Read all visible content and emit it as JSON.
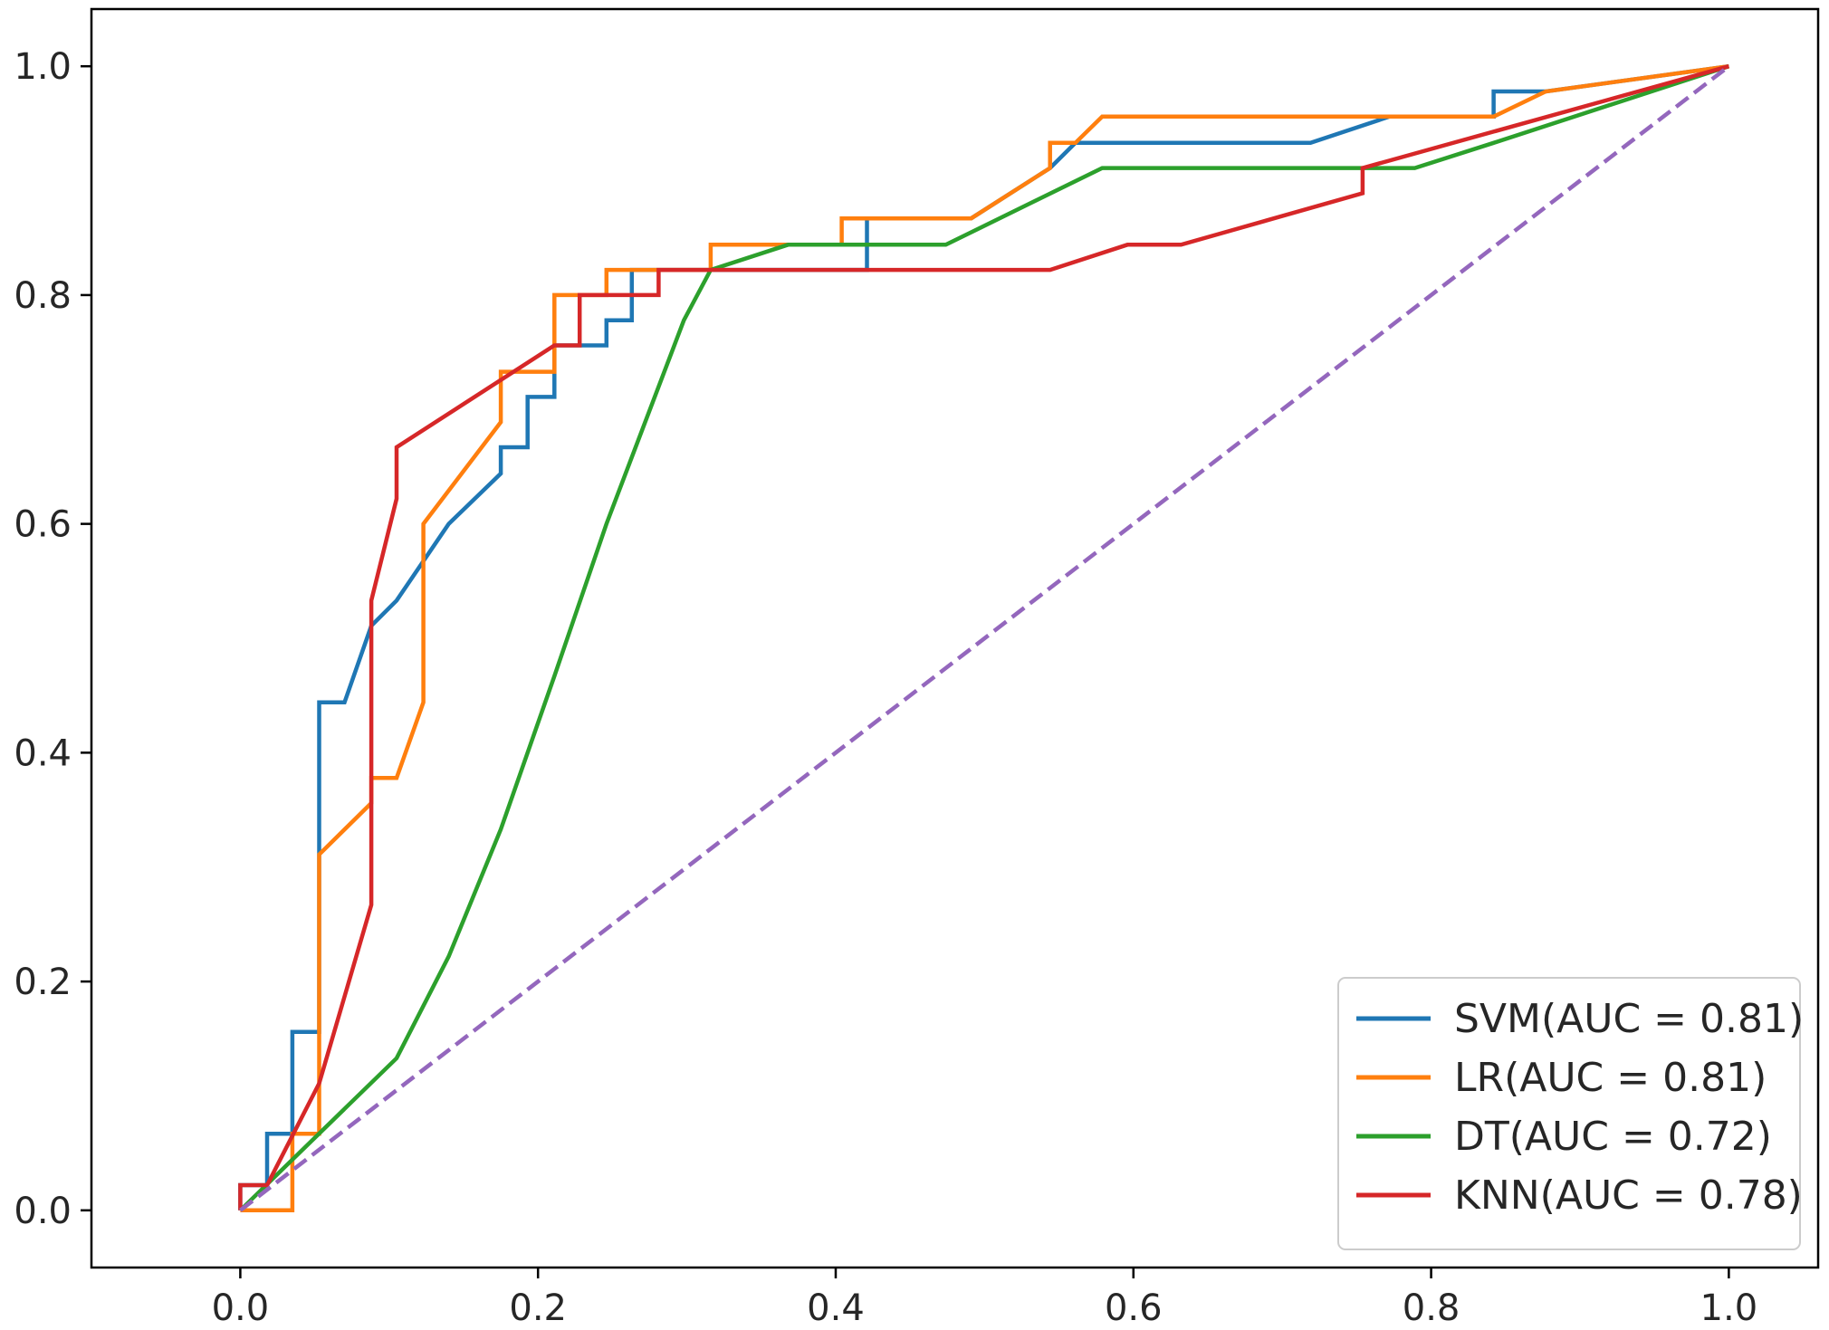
{
  "chart_data": {
    "type": "line",
    "title": "",
    "xlabel": "",
    "ylabel": "",
    "xlim": [
      -0.1,
      1.06
    ],
    "ylim": [
      -0.05,
      1.05
    ],
    "xticks": [
      0.0,
      0.2,
      0.4,
      0.6,
      0.8,
      1.0
    ],
    "yticks": [
      0.0,
      0.2,
      0.4,
      0.6,
      0.8,
      1.0
    ],
    "xtick_labels": [
      "0.0",
      "0.2",
      "0.4",
      "0.6",
      "0.8",
      "1.0"
    ],
    "ytick_labels": [
      "0.0",
      "0.2",
      "0.4",
      "0.6",
      "0.8",
      "1.0"
    ],
    "grid": false,
    "legend_position": "lower-right",
    "series": [
      {
        "name": "SVM(AUC = 0.81)",
        "color": "#1f77b4",
        "points": [
          [
            0,
            0
          ],
          [
            0,
            0.022
          ],
          [
            0.018,
            0.022
          ],
          [
            0.018,
            0.067
          ],
          [
            0.035,
            0.067
          ],
          [
            0.035,
            0.156
          ],
          [
            0.053,
            0.156
          ],
          [
            0.053,
            0.444
          ],
          [
            0.07,
            0.444
          ],
          [
            0.088,
            0.511
          ],
          [
            0.105,
            0.533
          ],
          [
            0.14,
            0.6
          ],
          [
            0.175,
            0.644
          ],
          [
            0.175,
            0.667
          ],
          [
            0.193,
            0.667
          ],
          [
            0.193,
            0.711
          ],
          [
            0.211,
            0.711
          ],
          [
            0.211,
            0.756
          ],
          [
            0.246,
            0.756
          ],
          [
            0.246,
            0.778
          ],
          [
            0.263,
            0.778
          ],
          [
            0.263,
            0.822
          ],
          [
            0.421,
            0.822
          ],
          [
            0.421,
            0.867
          ],
          [
            0.491,
            0.867
          ],
          [
            0.544,
            0.911
          ],
          [
            0.561,
            0.933
          ],
          [
            0.719,
            0.933
          ],
          [
            0.772,
            0.956
          ],
          [
            0.842,
            0.956
          ],
          [
            0.842,
            0.978
          ],
          [
            0.877,
            0.978
          ],
          [
            1.0,
            1.0
          ]
        ]
      },
      {
        "name": "LR(AUC = 0.81)",
        "color": "#ff7f0e",
        "points": [
          [
            0,
            0
          ],
          [
            0.035,
            0
          ],
          [
            0.035,
            0.022
          ],
          [
            0.035,
            0.067
          ],
          [
            0.053,
            0.067
          ],
          [
            0.053,
            0.311
          ],
          [
            0.088,
            0.356
          ],
          [
            0.088,
            0.378
          ],
          [
            0.105,
            0.378
          ],
          [
            0.123,
            0.444
          ],
          [
            0.123,
            0.6
          ],
          [
            0.175,
            0.689
          ],
          [
            0.175,
            0.733
          ],
          [
            0.211,
            0.733
          ],
          [
            0.211,
            0.8
          ],
          [
            0.246,
            0.8
          ],
          [
            0.246,
            0.822
          ],
          [
            0.316,
            0.822
          ],
          [
            0.316,
            0.844
          ],
          [
            0.404,
            0.844
          ],
          [
            0.404,
            0.867
          ],
          [
            0.491,
            0.867
          ],
          [
            0.544,
            0.911
          ],
          [
            0.544,
            0.933
          ],
          [
            0.561,
            0.933
          ],
          [
            0.579,
            0.956
          ],
          [
            0.842,
            0.956
          ],
          [
            0.877,
            0.978
          ],
          [
            1.0,
            1.0
          ]
        ]
      },
      {
        "name": "DT(AUC = 0.72)",
        "color": "#2ca02c",
        "points": [
          [
            0,
            0
          ],
          [
            0.105,
            0.133
          ],
          [
            0.14,
            0.222
          ],
          [
            0.175,
            0.333
          ],
          [
            0.211,
            0.467
          ],
          [
            0.246,
            0.6
          ],
          [
            0.298,
            0.778
          ],
          [
            0.316,
            0.822
          ],
          [
            0.368,
            0.844
          ],
          [
            0.474,
            0.844
          ],
          [
            0.579,
            0.911
          ],
          [
            0.789,
            0.911
          ],
          [
            0.842,
            0.933
          ],
          [
            1.0,
            1.0
          ]
        ]
      },
      {
        "name": "KNN(AUC = 0.78)",
        "color": "#d62728",
        "points": [
          [
            0,
            0
          ],
          [
            0,
            0.022
          ],
          [
            0.018,
            0.022
          ],
          [
            0.053,
            0.111
          ],
          [
            0.088,
            0.267
          ],
          [
            0.088,
            0.533
          ],
          [
            0.105,
            0.622
          ],
          [
            0.105,
            0.667
          ],
          [
            0.211,
            0.756
          ],
          [
            0.228,
            0.756
          ],
          [
            0.228,
            0.8
          ],
          [
            0.281,
            0.8
          ],
          [
            0.281,
            0.822
          ],
          [
            0.544,
            0.822
          ],
          [
            0.596,
            0.844
          ],
          [
            0.632,
            0.844
          ],
          [
            0.754,
            0.889
          ],
          [
            0.754,
            0.911
          ],
          [
            1.0,
            1.0
          ]
        ]
      },
      {
        "name": "",
        "color": "#9467bd",
        "dashed": true,
        "points": [
          [
            0,
            0
          ],
          [
            1.0,
            1.0
          ]
        ]
      }
    ]
  }
}
